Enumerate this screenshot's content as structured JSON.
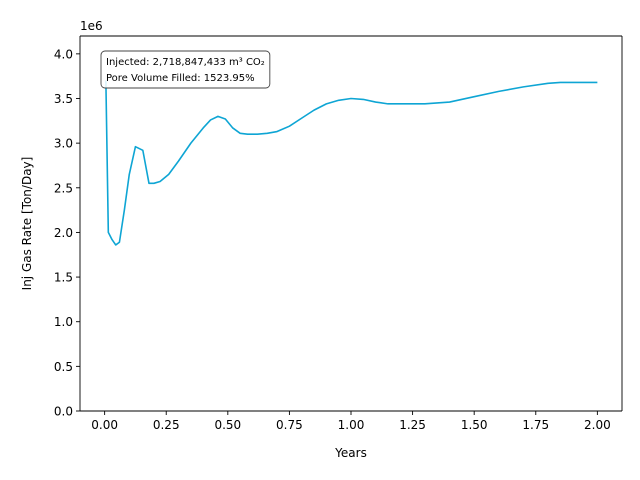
{
  "chart_data": {
    "type": "line",
    "xlabel": "Years",
    "ylabel": "Inj Gas Rate [Ton/Day]",
    "y_offset_label": "1e6",
    "xlim": [
      -0.1,
      2.1
    ],
    "ylim": [
      0,
      4.2
    ],
    "x_ticks": [
      0.0,
      0.25,
      0.5,
      0.75,
      1.0,
      1.25,
      1.5,
      1.75,
      2.0
    ],
    "x_tick_labels": [
      "0.00",
      "0.25",
      "0.50",
      "0.75",
      "1.00",
      "1.25",
      "1.50",
      "1.75",
      "2.00"
    ],
    "y_ticks": [
      0.0,
      0.5,
      1.0,
      1.5,
      2.0,
      2.5,
      3.0,
      3.5,
      4.0
    ],
    "y_tick_labels": [
      "0.0",
      "0.5",
      "1.0",
      "1.5",
      "2.0",
      "2.5",
      "3.0",
      "3.5",
      "4.0"
    ],
    "grid": false,
    "line_color": "#0ea5d4",
    "annotation": {
      "line1": "Injected: 2,718,847,433 m³ CO₂",
      "line2": "Pore Volume Filled: 1523.95%"
    },
    "series": [
      {
        "x": [
          0.005,
          0.015,
          0.03,
          0.045,
          0.06,
          0.08,
          0.1,
          0.125,
          0.155,
          0.18,
          0.2,
          0.225,
          0.26,
          0.3,
          0.35,
          0.4,
          0.43,
          0.46,
          0.49,
          0.52,
          0.55,
          0.58,
          0.62,
          0.66,
          0.7,
          0.75,
          0.8,
          0.85,
          0.9,
          0.95,
          1.0,
          1.05,
          1.1,
          1.15,
          1.2,
          1.3,
          1.4,
          1.5,
          1.6,
          1.7,
          1.8,
          1.85,
          1.9,
          2.0
        ],
        "y": [
          3.7,
          2.0,
          1.92,
          1.86,
          1.89,
          2.25,
          2.65,
          2.96,
          2.92,
          2.55,
          2.55,
          2.57,
          2.65,
          2.8,
          3.0,
          3.17,
          3.26,
          3.3,
          3.27,
          3.17,
          3.11,
          3.1,
          3.1,
          3.11,
          3.13,
          3.19,
          3.28,
          3.37,
          3.44,
          3.48,
          3.5,
          3.49,
          3.46,
          3.44,
          3.44,
          3.44,
          3.46,
          3.52,
          3.58,
          3.63,
          3.67,
          3.68,
          3.68,
          3.68
        ]
      }
    ]
  }
}
